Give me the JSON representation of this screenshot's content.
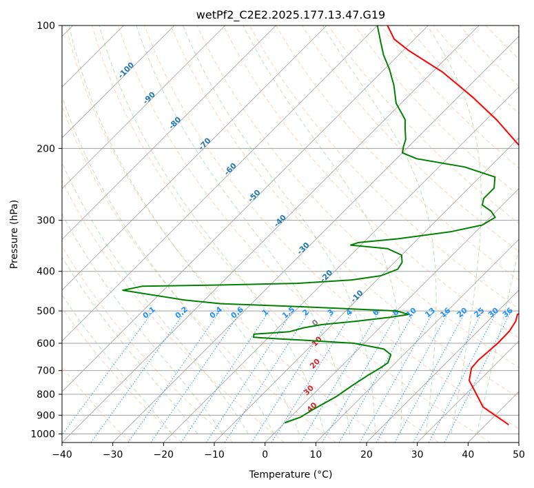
{
  "chart_data": {
    "type": "skew-t",
    "title": "wetPf2_C2E2.2025.177.13.47.G19",
    "xlabel": "Temperature (°C)",
    "ylabel": "Pressure (hPa)",
    "xlim": [
      -40,
      50
    ],
    "ylim": [
      1050,
      100
    ],
    "y_scale": "log",
    "x_ticks": [
      -40,
      -30,
      -20,
      -10,
      0,
      10,
      20,
      30,
      40,
      50
    ],
    "y_ticks": [
      100,
      200,
      300,
      400,
      500,
      600,
      700,
      800,
      900,
      1000
    ],
    "grid": true,
    "series": [
      {
        "color": "#ff0000",
        "points": [
          {
            "t": 44.5,
            "p": 950
          },
          {
            "t": 36,
            "p": 860
          },
          {
            "t": 28,
            "p": 740
          },
          {
            "t": 26,
            "p": 690
          },
          {
            "t": 25.8,
            "p": 660
          },
          {
            "t": 26.3,
            "p": 600
          },
          {
            "t": 26.2,
            "p": 560
          },
          {
            "t": 25.5,
            "p": 530
          },
          {
            "t": 24.5,
            "p": 510
          },
          {
            "t": 25.5,
            "p": 490
          },
          {
            "t": 26.5,
            "p": 485
          },
          {
            "t": 26.5,
            "p": 470
          },
          {
            "t": 25.5,
            "p": 445
          },
          {
            "t": 23.5,
            "p": 425
          },
          {
            "t": 20.5,
            "p": 400
          },
          {
            "t": 16,
            "p": 360
          },
          {
            "t": 12.5,
            "p": 320
          },
          {
            "t": 9,
            "p": 285
          },
          {
            "t": 4,
            "p": 250
          },
          {
            "t": 0,
            "p": 230
          },
          {
            "t": -4,
            "p": 210
          },
          {
            "t": -9,
            "p": 195
          },
          {
            "t": -18,
            "p": 170
          },
          {
            "t": -27,
            "p": 150
          },
          {
            "t": -38,
            "p": 130
          },
          {
            "t": -49,
            "p": 115
          },
          {
            "t": -54,
            "p": 108
          },
          {
            "t": -58,
            "p": 100
          }
        ]
      },
      {
        "color": "#008000",
        "points": [
          {
            "t": 0,
            "p": 940
          },
          {
            "t": 2,
            "p": 910
          },
          {
            "t": 3,
            "p": 870
          },
          {
            "t": 5,
            "p": 810
          },
          {
            "t": 6,
            "p": 760
          },
          {
            "t": 7,
            "p": 720
          },
          {
            "t": 8,
            "p": 690
          },
          {
            "t": 8.5,
            "p": 670
          },
          {
            "t": 7.5,
            "p": 640
          },
          {
            "t": 5,
            "p": 620
          },
          {
            "t": -2,
            "p": 600
          },
          {
            "t": -12,
            "p": 590
          },
          {
            "t": -18,
            "p": 585
          },
          {
            "t": -23,
            "p": 580
          },
          {
            "t": -23.5,
            "p": 570
          },
          {
            "t": -17,
            "p": 562
          },
          {
            "t": -15,
            "p": 550
          },
          {
            "t": -12,
            "p": 540
          },
          {
            "t": -6,
            "p": 530
          },
          {
            "t": 0,
            "p": 518
          },
          {
            "t": 3,
            "p": 510
          },
          {
            "t": 0,
            "p": 500
          },
          {
            "t": -20,
            "p": 488
          },
          {
            "t": -36,
            "p": 480
          },
          {
            "t": -44,
            "p": 470
          },
          {
            "t": -58,
            "p": 445
          },
          {
            "t": -55,
            "p": 435
          },
          {
            "t": -40,
            "p": 432
          },
          {
            "t": -25,
            "p": 428
          },
          {
            "t": -15,
            "p": 420
          },
          {
            "t": -10,
            "p": 410
          },
          {
            "t": -8,
            "p": 395
          },
          {
            "t": -8.5,
            "p": 380
          },
          {
            "t": -10,
            "p": 365
          },
          {
            "t": -14,
            "p": 352
          },
          {
            "t": -22,
            "p": 345
          },
          {
            "t": -21,
            "p": 340
          },
          {
            "t": -14,
            "p": 333
          },
          {
            "t": -5,
            "p": 320
          },
          {
            "t": 0,
            "p": 308
          },
          {
            "t": 1,
            "p": 295
          },
          {
            "t": -1,
            "p": 285
          },
          {
            "t": -4,
            "p": 275
          },
          {
            "t": -5,
            "p": 265
          },
          {
            "t": -5,
            "p": 250
          },
          {
            "t": -7,
            "p": 235
          },
          {
            "t": -15,
            "p": 222
          },
          {
            "t": -26,
            "p": 212
          },
          {
            "t": -30,
            "p": 205
          },
          {
            "t": -31,
            "p": 198
          },
          {
            "t": -32,
            "p": 190
          },
          {
            "t": -34,
            "p": 180
          },
          {
            "t": -36,
            "p": 170
          },
          {
            "t": -41,
            "p": 155
          },
          {
            "t": -45,
            "p": 140
          },
          {
            "t": -49,
            "p": 128
          },
          {
            "t": -53,
            "p": 118
          },
          {
            "t": -56,
            "p": 110
          },
          {
            "t": -60,
            "p": 100
          }
        ]
      }
    ],
    "isotherm_labels": [
      "-100",
      "-90",
      "-80",
      "-70",
      "-60",
      "-50",
      "-40",
      "-30",
      "-20",
      "-10"
    ],
    "mixing_ratio_labels": [
      "0.1",
      "0.2",
      "0.4",
      "0.6",
      "1",
      "1.5",
      "2",
      "3",
      "4",
      "6",
      "8",
      "10",
      "13",
      "16",
      "20",
      "25",
      "30",
      "36"
    ],
    "cape_labels": [
      "0",
      "10",
      "20",
      "30",
      "40"
    ],
    "colors": {
      "temperature": "#ff0000",
      "dewpoint": "#008000",
      "isotherm_label": "#1f77b4",
      "mixing_ratio": "#1e90ff",
      "cape_label": "#d62728",
      "dry_adiabat": "#ff9966",
      "moist_adiabat": "#66bb66",
      "grid": "#a0a0a0"
    }
  }
}
